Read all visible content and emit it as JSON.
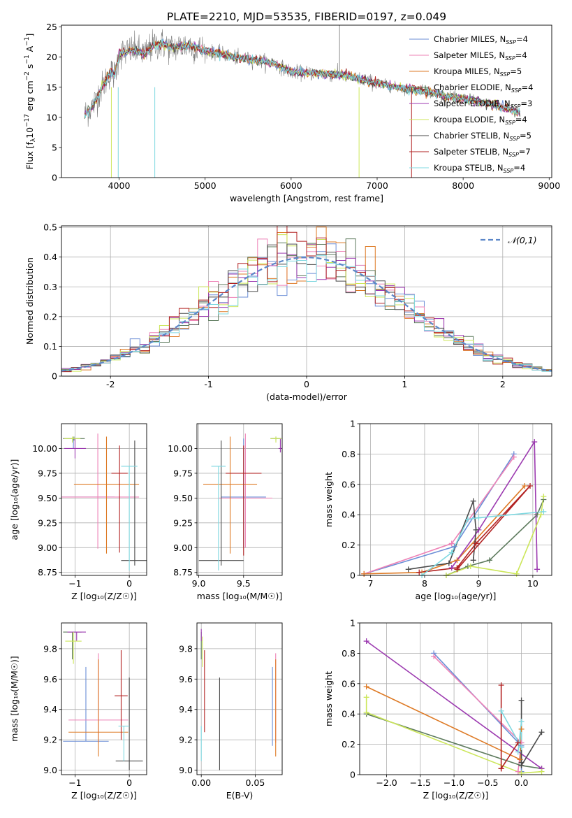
{
  "figure_title": "PLATE=2210, MJD=53535, FIBERID=0197, z=0.049",
  "series": [
    {
      "key": "chab_miles",
      "imf": "Chabrier",
      "lib": "MILES",
      "n": "4",
      "color": "#6b8ed6"
    },
    {
      "key": "salp_miles",
      "imf": "Salpeter",
      "lib": "MILES",
      "n": "4",
      "color": "#ee82b6"
    },
    {
      "key": "krou_miles",
      "imf": "Kroupa",
      "lib": "MILES",
      "n": "5",
      "color": "#de7a25"
    },
    {
      "key": "chab_elodie",
      "imf": "Chabrier",
      "lib": "ELODIE",
      "n": "4",
      "color": "#5d7a5d"
    },
    {
      "key": "salp_elodie",
      "imf": "Salpeter",
      "lib": "ELODIE",
      "n": "3",
      "color": "#9c3ab0"
    },
    {
      "key": "krou_elodie",
      "imf": "Kroupa",
      "lib": "ELODIE",
      "n": "4",
      "color": "#cce65a"
    },
    {
      "key": "chab_stelib",
      "imf": "Chabrier",
      "lib": "STELIB",
      "n": "5",
      "color": "#4a4a4a"
    },
    {
      "key": "salp_stelib",
      "imf": "Salpeter",
      "lib": "STELIB",
      "n": "7",
      "color": "#b22222"
    },
    {
      "key": "krou_stelib",
      "imf": "Kroupa",
      "lib": "STELIB",
      "n": "4",
      "color": "#7fd8e0"
    }
  ],
  "chart_data": [
    {
      "id": "spectrum",
      "type": "line",
      "xlabel": "wavelength [Angstrom, rest frame]",
      "xlim": [
        3330,
        9030
      ],
      "ylim": [
        0,
        25.3
      ],
      "xticks": [
        4000,
        5000,
        6000,
        7000,
        8000,
        9000
      ],
      "yticks": [
        0,
        5,
        10,
        15,
        20,
        25
      ],
      "legend_position": "right",
      "data_series": {
        "name": "",
        "color": "#808080",
        "x_range": [
          3600,
          8660
        ]
      },
      "continuum_knots": {
        "x": [
          3600,
          3700,
          3800,
          3900,
          3950,
          4000,
          4100,
          4200,
          4300,
          4400,
          4500,
          4600,
          4800,
          5000,
          5200,
          5400,
          5600,
          5800,
          6000,
          6300,
          6600,
          6900,
          7200,
          7500,
          7800,
          8100,
          8400,
          8660
        ],
        "y": [
          10.5,
          12.0,
          15.0,
          17.5,
          17.0,
          20.5,
          21.0,
          21.2,
          20.5,
          22.0,
          22.2,
          21.5,
          22.0,
          21.0,
          20.5,
          19.8,
          19.5,
          19.0,
          17.5,
          17.3,
          17.0,
          16.0,
          15.0,
          14.5,
          13.5,
          12.8,
          12.0,
          10.7
        ]
      }
    },
    {
      "id": "residuals",
      "type": "line",
      "xlabel": "(data-model)/error",
      "ylabel": "Normed distribution",
      "xlim": [
        -2.5,
        2.5
      ],
      "ylim": [
        0,
        0.505
      ],
      "xticks": [
        -2,
        -1,
        0,
        1,
        2
      ],
      "yticks": [
        0.0,
        0.1,
        0.2,
        0.3,
        0.4,
        0.5
      ],
      "bin_width": 0.1,
      "reference_curve": {
        "name": "𝒩(0,1)",
        "type": "gaussian",
        "mean": 0,
        "sigma": 1
      },
      "legend_position": "upper right",
      "grid": true
    },
    {
      "id": "age_vs_Z",
      "type": "scatter",
      "xlabel": "Z [log₁₀(Z/Z☉)]",
      "ylabel": "age  [log₁₀(age/yr)]",
      "xlim": [
        -1.25,
        0.32
      ],
      "ylim": [
        8.72,
        10.25
      ],
      "xticks": [
        -1,
        0
      ],
      "xticklabels": [
        "−1",
        "0"
      ],
      "yticks": [
        8.75,
        9.0,
        9.25,
        9.5,
        9.75,
        10.0
      ],
      "yticklabels": [
        "8.75",
        "9.00",
        "9.25",
        "9.50",
        "9.75",
        "10.00"
      ],
      "grid": true,
      "points": [
        {
          "s": "chab_miles",
          "x": -1.03,
          "y": 9.51,
          "xerr": 0.76,
          "yerr": 0.0,
          "vtop": 10.1,
          "vbot": 10.0
        },
        {
          "s": "salp_miles",
          "x": -0.58,
          "y": 9.51,
          "xerr": 0.76,
          "yerr": 0.0,
          "vtop": 10.15,
          "vbot": 8.99
        },
        {
          "s": "krou_miles",
          "x": -0.42,
          "y": 9.64,
          "xerr": 0.6,
          "yerr": 0.0,
          "vtop": 10.12,
          "vbot": 8.94
        },
        {
          "s": "chab_elodie",
          "x": -1.02,
          "y": 10.1,
          "xerr": 0.2,
          "yerr": 0.0,
          "vtop": 10.12,
          "vbot": 10.08
        },
        {
          "s": "salp_elodie",
          "x": -1.0,
          "y": 10.0,
          "xerr": 0.2,
          "yerr": 0.0,
          "vtop": 10.1,
          "vbot": 9.9
        },
        {
          "s": "krou_elodie",
          "x": -1.05,
          "y": 10.1,
          "xerr": 0.15,
          "yerr": 0.0,
          "vtop": 10.12,
          "vbot": 10.06
        },
        {
          "s": "chab_stelib",
          "x": 0.1,
          "y": 8.87,
          "xerr": 0.25,
          "yerr": 0.0,
          "vtop": 10.08,
          "vbot": 8.82
        },
        {
          "s": "salp_stelib",
          "x": -0.18,
          "y": 9.75,
          "xerr": 0.15,
          "yerr": 0.0,
          "vtop": 10.03,
          "vbot": 8.95
        },
        {
          "s": "krou_stelib",
          "x": 0.0,
          "y": 9.82,
          "xerr": 0.15,
          "yerr": 0.0,
          "vtop": 9.82,
          "vbot": 8.77
        }
      ]
    },
    {
      "id": "age_vs_mass",
      "type": "scatter",
      "xlabel": "mass [log₁₀(M/M☉)]",
      "xlim": [
        8.98,
        9.93
      ],
      "ylim": [
        8.72,
        10.25
      ],
      "xticks": [
        9.0,
        9.5
      ],
      "xticklabels": [
        "9.0",
        "9.5"
      ],
      "yticks": [
        8.75,
        9.0,
        9.25,
        9.5,
        9.75,
        10.0
      ],
      "yticklabels": [
        "8.75",
        "9.00",
        "9.25",
        "9.50",
        "9.75",
        "10.00"
      ],
      "grid": true,
      "points": [
        {
          "s": "chab_miles",
          "x": 9.5,
          "y": 9.51,
          "xerr": 0.25,
          "vtop": 10.1,
          "vbot": 9.0
        },
        {
          "s": "salp_miles",
          "x": 9.52,
          "y": 9.5,
          "xerr": 0.3,
          "vtop": 10.15,
          "vbot": 9.0
        },
        {
          "s": "krou_miles",
          "x": 9.35,
          "y": 9.64,
          "xerr": 0.3,
          "vtop": 10.12,
          "vbot": 8.94
        },
        {
          "s": "chab_elodie",
          "x": 9.86,
          "y": 10.1,
          "xerr": 0.06,
          "vtop": 10.12,
          "vbot": 10.08
        },
        {
          "s": "salp_elodie",
          "x": 9.91,
          "y": 10.0,
          "xerr": 0.02,
          "vtop": 10.1,
          "vbot": 9.96
        },
        {
          "s": "krou_elodie",
          "x": 9.86,
          "y": 10.1,
          "xerr": 0.06,
          "vtop": 10.12,
          "vbot": 10.06
        },
        {
          "s": "chab_stelib",
          "x": 9.25,
          "y": 8.87,
          "xerr": 0.25,
          "vtop": 10.08,
          "vbot": 8.82
        },
        {
          "s": "salp_stelib",
          "x": 9.5,
          "y": 9.75,
          "xerr": 0.2,
          "vtop": 10.03,
          "vbot": 8.92
        },
        {
          "s": "krou_stelib",
          "x": 9.22,
          "y": 9.82,
          "xerr": 0.08,
          "vtop": 9.82,
          "vbot": 8.77
        }
      ]
    },
    {
      "id": "massweight_vs_age",
      "type": "line",
      "xlabel": "age  [log₁₀(age/yr)]",
      "ylabel": "mass weight",
      "xlim": [
        6.8,
        10.35
      ],
      "ylim": [
        0,
        1.0
      ],
      "xticks": [
        7,
        8,
        9,
        10
      ],
      "yticks": [
        0.0,
        0.2,
        0.4,
        0.6,
        0.8,
        1.0
      ],
      "grid": true,
      "lines": [
        {
          "s": "chab_miles",
          "x": [
            6.88,
            8.55,
            9.65
          ],
          "y": [
            0.01,
            0.19,
            0.8
          ]
        },
        {
          "s": "salp_miles",
          "x": [
            6.88,
            8.5,
            9.65
          ],
          "y": [
            0.01,
            0.21,
            0.78
          ]
        },
        {
          "s": "krou_miles",
          "x": [
            6.88,
            7.95,
            8.6,
            9.85
          ],
          "y": [
            0.01,
            0.02,
            0.1,
            0.59
          ]
        },
        {
          "s": "chab_elodie",
          "x": [
            8.4,
            8.8,
            9.2,
            10.08,
            10.2
          ],
          "y": [
            0.0,
            0.06,
            0.1,
            0.4,
            0.5
          ]
        },
        {
          "s": "salp_elodie",
          "x": [
            8.5,
            9.0,
            10.03,
            10.08
          ],
          "y": [
            0.05,
            0.3,
            0.88,
            0.04
          ]
        },
        {
          "s": "krou_elodie",
          "x": [
            8.4,
            8.85,
            9.7,
            10.15,
            10.2
          ],
          "y": [
            0.0,
            0.06,
            0.01,
            0.4,
            0.52
          ]
        },
        {
          "s": "chab_stelib",
          "x": [
            7.7,
            8.45,
            8.9,
            8.95,
            8.9
          ],
          "y": [
            0.04,
            0.08,
            0.49,
            0.3,
            0.1
          ]
        },
        {
          "s": "salp_stelib",
          "x": [
            7.9,
            8.6,
            8.95,
            9.95,
            8.6
          ],
          "y": [
            0.02,
            0.05,
            0.21,
            0.59,
            0.04
          ]
        },
        {
          "s": "krou_stelib",
          "x": [
            7.95,
            8.5,
            8.8,
            9.0,
            10.2
          ],
          "y": [
            0.0,
            0.15,
            0.37,
            0.38,
            0.42
          ]
        }
      ]
    },
    {
      "id": "mass_vs_Z",
      "type": "scatter",
      "xlabel": "Z [log₁₀(Z/Z☉)]",
      "ylabel": "mass [log₁₀(M/M☉)]",
      "xlim": [
        -1.25,
        0.32
      ],
      "ylim": [
        8.97,
        9.97
      ],
      "xticks": [
        -1,
        0
      ],
      "xticklabels": [
        "−1",
        "0"
      ],
      "yticks": [
        9.0,
        9.2,
        9.4,
        9.6,
        9.8
      ],
      "yticklabels": [
        "9.0",
        "9.2",
        "9.4",
        "9.6",
        "9.8"
      ],
      "grid": true,
      "points": [
        {
          "s": "chab_miles",
          "x": -0.8,
          "y": 9.19,
          "xerr": 0.42,
          "vtop": 9.68,
          "vbot": 9.19
        },
        {
          "s": "salp_miles",
          "x": -0.57,
          "y": 9.33,
          "xerr": 0.55,
          "vtop": 9.77,
          "vbot": 9.18
        },
        {
          "s": "krou_miles",
          "x": -0.57,
          "y": 9.25,
          "xerr": 0.55,
          "vtop": 9.73,
          "vbot": 9.09
        },
        {
          "s": "chab_elodie",
          "x": -1.05,
          "y": 9.91,
          "xerr": 0.17,
          "vtop": 9.91,
          "vbot": 9.73
        },
        {
          "s": "salp_elodie",
          "x": -0.97,
          "y": 9.91,
          "xerr": 0.17,
          "vtop": 9.91,
          "vbot": 9.85
        },
        {
          "s": "krou_elodie",
          "x": -1.03,
          "y": 9.85,
          "xerr": 0.15,
          "vtop": 9.91,
          "vbot": 9.7
        },
        {
          "s": "chab_stelib",
          "x": 0.0,
          "y": 9.06,
          "xerr": 0.25,
          "vtop": 9.61,
          "vbot": 9.0
        },
        {
          "s": "salp_stelib",
          "x": -0.15,
          "y": 9.49,
          "xerr": 0.12,
          "vtop": 9.79,
          "vbot": 9.2
        },
        {
          "s": "krou_stelib",
          "x": -0.1,
          "y": 9.29,
          "xerr": 0.1,
          "vtop": 9.29,
          "vbot": 9.06
        }
      ]
    },
    {
      "id": "mass_vs_ebv",
      "type": "scatter",
      "xlabel": "E(B-V)",
      "xlim": [
        -0.004,
        0.075
      ],
      "ylim": [
        8.97,
        9.97
      ],
      "xticks": [
        0.0,
        0.05
      ],
      "xticklabels": [
        "0.00",
        "0.05"
      ],
      "yticks": [
        9.0,
        9.2,
        9.4,
        9.6,
        9.8
      ],
      "yticklabels": [
        "9.0",
        "9.2",
        "9.4",
        "9.6",
        "9.8"
      ],
      "grid": true,
      "points": [
        {
          "s": "chab_miles",
          "x": 0.066,
          "vtop": 9.68,
          "vbot": 9.16
        },
        {
          "s": "salp_miles",
          "x": 0.069,
          "vtop": 9.77,
          "vbot": 9.18
        },
        {
          "s": "krou_miles",
          "x": 0.069,
          "vtop": 9.73,
          "vbot": 9.09
        },
        {
          "s": "chab_elodie",
          "x": 0.0,
          "vtop": 9.91,
          "vbot": 9.73
        },
        {
          "s": "salp_elodie",
          "x": 0.0,
          "vtop": 9.93,
          "vbot": 9.85
        },
        {
          "s": "krou_elodie",
          "x": 0.001,
          "vtop": 9.88,
          "vbot": 9.68
        },
        {
          "s": "chab_stelib",
          "x": 0.017,
          "vtop": 9.61,
          "vbot": 9.0
        },
        {
          "s": "salp_stelib",
          "x": 0.003,
          "vtop": 9.79,
          "vbot": 9.25
        },
        {
          "s": "krou_stelib",
          "x": 0.0,
          "vtop": 9.29,
          "vbot": 9.06
        }
      ]
    },
    {
      "id": "massweight_vs_Z",
      "type": "line",
      "xlabel": "Z [log₁₀(Z/Z☉)]",
      "ylabel": "mass weight",
      "xlim": [
        -2.4,
        0.45
      ],
      "ylim": [
        0,
        1.0
      ],
      "xticks": [
        -2.0,
        -1.5,
        -1.0,
        -0.5,
        0.0
      ],
      "xticklabels": [
        "−2.0",
        "−1.5",
        "−1.0",
        "−0.5",
        "0.0"
      ],
      "yticks": [
        0.0,
        0.2,
        0.4,
        0.6,
        0.8,
        1.0
      ],
      "grid": true,
      "lines": [
        {
          "s": "chab_miles",
          "x": [
            -1.3,
            0.0,
            0.0
          ],
          "y": [
            0.8,
            0.19,
            0.02
          ]
        },
        {
          "s": "salp_miles",
          "x": [
            -1.3,
            0.0,
            -0.05
          ],
          "y": [
            0.78,
            0.21,
            0.02
          ]
        },
        {
          "s": "krou_miles",
          "x": [
            -2.3,
            -0.02,
            0.0
          ],
          "y": [
            0.58,
            0.1,
            0.3
          ]
        },
        {
          "s": "chab_elodie",
          "x": [
            -2.3,
            0.0,
            0.3
          ],
          "y": [
            0.4,
            0.06,
            0.04
          ]
        },
        {
          "s": "salp_elodie",
          "x": [
            -2.3,
            0.3
          ],
          "y": [
            0.88,
            0.04
          ]
        },
        {
          "s": "krou_elodie",
          "x": [
            -2.3,
            -2.3,
            0.0,
            0.3
          ],
          "y": [
            0.51,
            0.41,
            0.01,
            0.02
          ]
        },
        {
          "s": "chab_stelib",
          "x": [
            0.0,
            0.0,
            0.0,
            0.3
          ],
          "y": [
            0.49,
            0.08,
            0.06,
            0.28
          ]
        },
        {
          "s": "salp_stelib",
          "x": [
            -0.3,
            -0.3,
            -0.05,
            -0.3
          ],
          "y": [
            0.59,
            0.04,
            0.21,
            0.04
          ]
        },
        {
          "s": "krou_stelib",
          "x": [
            -0.3,
            0.0,
            0.0,
            -0.05
          ],
          "y": [
            0.42,
            0.18,
            0.35,
            0.15
          ]
        }
      ]
    }
  ]
}
